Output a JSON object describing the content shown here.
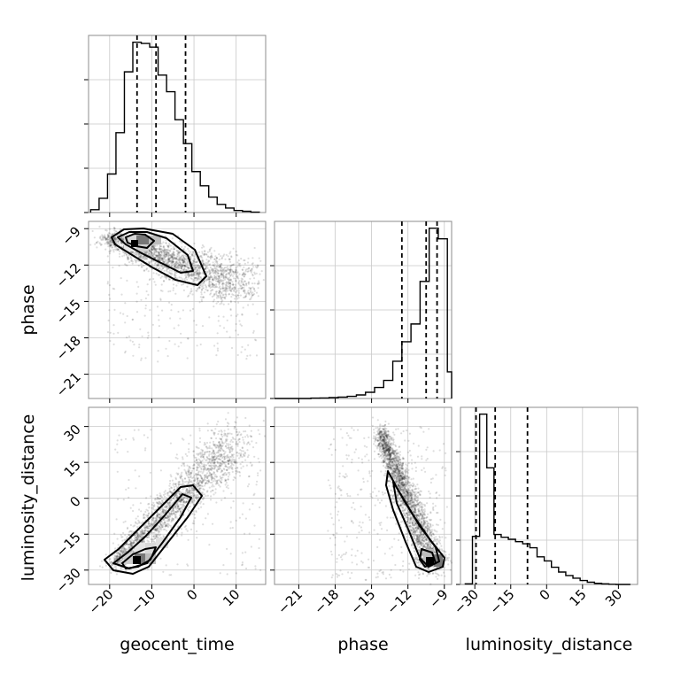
{
  "figure": {
    "type": "corner_plot",
    "parameters": [
      "geocent_time",
      "phase",
      "luminosity_distance"
    ]
  },
  "chart_data": [
    {
      "type": "histogram",
      "panel": "geocent_time-marginal",
      "param": "geocent_time",
      "xlim": [
        -25,
        17
      ],
      "bin_edges": [
        -24.5,
        -22.5,
        -20.5,
        -18.5,
        -16.5,
        -14.5,
        -12.5,
        -10.5,
        -8.5,
        -6.5,
        -4.5,
        -2.5,
        -0.5,
        1.5,
        3.5,
        5.5,
        7.5,
        9.5,
        11.5,
        13.5,
        15.5
      ],
      "counts": [
        0.7,
        3.5,
        9.5,
        19.7,
        34.7,
        42.0,
        41.7,
        40.8,
        33.9,
        29.8,
        22.9,
        17.0,
        10.1,
        6.6,
        3.8,
        2.0,
        1.1,
        0.5,
        0.3,
        0.1
      ],
      "quantile_lines": [
        -13.5,
        -9,
        -2
      ],
      "ticks": [
        -20,
        -10,
        0,
        10
      ],
      "tick_labels": [
        "−20",
        "−10",
        "0",
        "10"
      ],
      "show_tick_labels": false
    },
    {
      "type": "histogram",
      "panel": "phase-marginal",
      "param": "phase",
      "xlim": [
        -23,
        -8.4
      ],
      "bin_edges": [
        -23,
        -22.25,
        -21.5,
        -20.75,
        -20,
        -19.25,
        -18.5,
        -17.75,
        -17,
        -16.25,
        -15.5,
        -14.75,
        -14,
        -13.25,
        -12.5,
        -11.75,
        -11,
        -10.25,
        -9.5,
        -8.75,
        -8.4
      ],
      "counts": [
        0,
        0,
        0,
        0,
        0.2,
        0.3,
        0.5,
        0.8,
        1.2,
        2,
        3.5,
        6.2,
        10.2,
        21,
        32,
        42,
        66,
        96,
        90,
        15
      ],
      "quantile_lines": [
        -12.5,
        -10.5,
        -9.6
      ],
      "ticks": [
        -21,
        -18,
        -15,
        -12,
        -9
      ],
      "tick_labels": [
        "−21",
        "−18",
        "−15",
        "−12",
        "−9"
      ]
    },
    {
      "type": "histogram",
      "panel": "luminosity_distance-marginal",
      "param": "luminosity_distance",
      "xlim": [
        -36,
        38
      ],
      "bin_edges": [
        -34,
        -31,
        -28,
        -25,
        -22,
        -19,
        -16,
        -13,
        -10,
        -7,
        -4,
        -1,
        2,
        5,
        8,
        11,
        14,
        17,
        20,
        23,
        26,
        29,
        32,
        35
      ],
      "counts": [
        0.3,
        26,
        92,
        63,
        27,
        25.5,
        24.4,
        23.1,
        22,
        19.8,
        14.9,
        12.7,
        9.3,
        6.7,
        4.8,
        3.4,
        2.1,
        1.2,
        0.6,
        0.3,
        0.1,
        0,
        0
      ],
      "quantile_lines": [
        -29.5,
        -21.5,
        -8
      ],
      "ticks": [
        -30,
        -15,
        0,
        15,
        30
      ],
      "tick_labels": [
        "−30",
        "−15",
        "0",
        "15",
        "30"
      ]
    },
    {
      "type": "scatter",
      "panel": "phase-vs-geocent_time",
      "x": "geocent_time",
      "y": "phase",
      "xlim": [
        -25,
        17
      ],
      "ylim": [
        -23,
        -8.4
      ],
      "yticks": [
        -9,
        -12,
        -15,
        -18,
        -21
      ],
      "ytick_labels": [
        "−9",
        "−12",
        "−15",
        "−18",
        "−21"
      ]
    },
    {
      "type": "scatter",
      "panel": "luminosity_distance-vs-geocent_time",
      "x": "geocent_time",
      "y": "luminosity_distance",
      "xlim": [
        -25,
        17
      ],
      "ylim": [
        -36,
        38
      ],
      "xticks": [
        -20,
        -10,
        0,
        10
      ],
      "xtick_labels": [
        "−20",
        "−10",
        "0",
        "10"
      ],
      "yticks": [
        30,
        15,
        0,
        -15,
        -30
      ],
      "ytick_labels": [
        "30",
        "15",
        "0",
        "−15",
        "−30"
      ]
    },
    {
      "type": "scatter",
      "panel": "luminosity_distance-vs-phase",
      "x": "phase",
      "y": "luminosity_distance",
      "xlim": [
        -23,
        -8.4
      ],
      "ylim": [
        -36,
        38
      ],
      "xticks": [
        -21,
        -18,
        -15,
        -12,
        -9
      ],
      "xtick_labels": [
        "−21",
        "−18",
        "−15",
        "−12",
        "−9"
      ]
    }
  ],
  "labels": {
    "x_geocent_time": "geocent_time",
    "x_phase": "phase",
    "x_luminosity_distance": "luminosity_distance",
    "y_phase": "phase",
    "y_luminosity_distance": "luminosity_distance"
  }
}
